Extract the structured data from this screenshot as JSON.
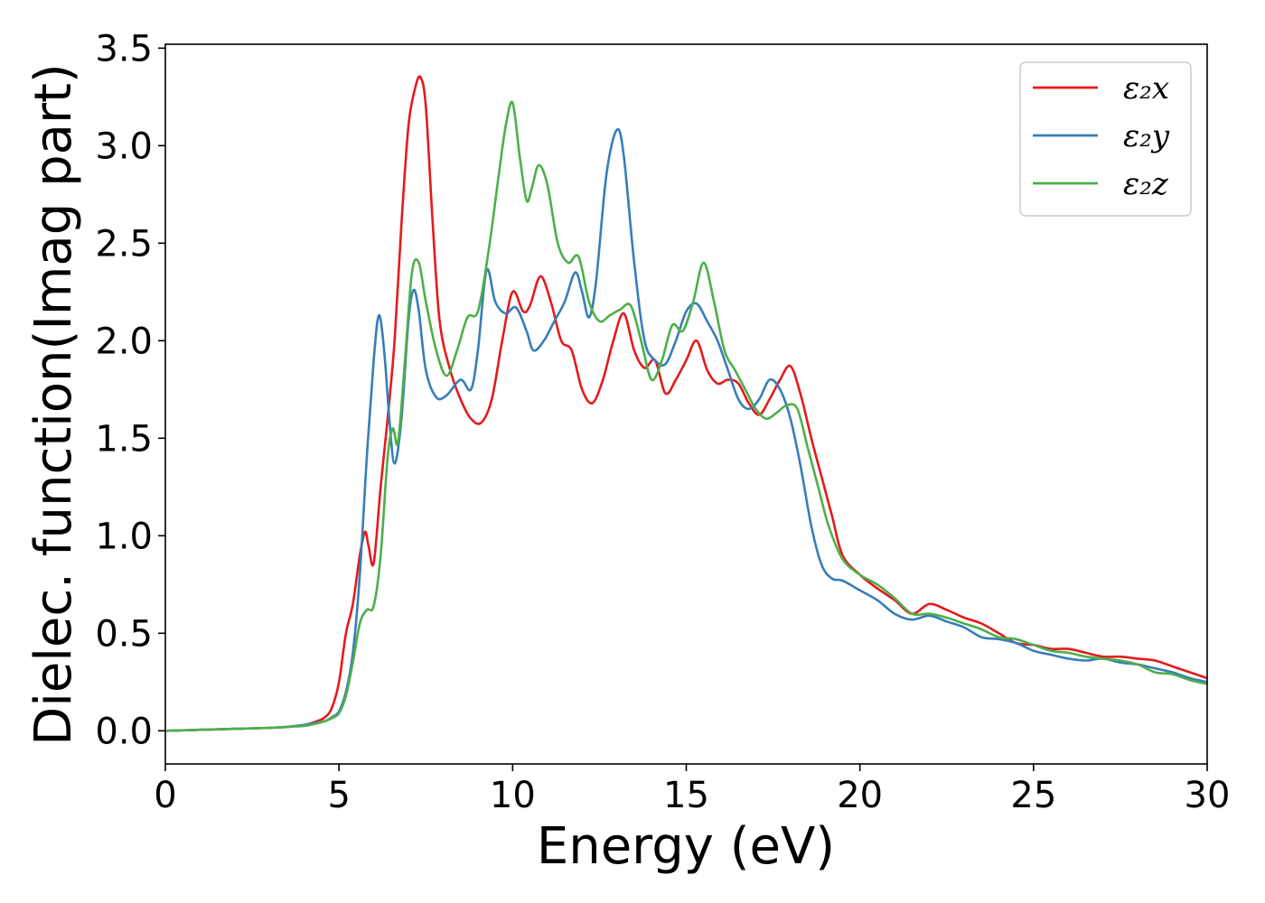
{
  "chart_data": {
    "type": "line",
    "title": "",
    "xlabel": "Energy (eV)",
    "ylabel": "Dielec. function(Imag part)",
    "xlim": [
      0,
      30
    ],
    "ylim": [
      -0.17,
      3.52
    ],
    "xticks": [
      0,
      5,
      10,
      15,
      20,
      25,
      30
    ],
    "yticks": [
      0.0,
      0.5,
      1.0,
      1.5,
      2.0,
      2.5,
      3.0,
      3.5
    ],
    "xtick_labels": [
      "0",
      "5",
      "10",
      "15",
      "20",
      "25",
      "30"
    ],
    "ytick_labels": [
      "0.0",
      "0.5",
      "1.0",
      "1.5",
      "2.0",
      "2.5",
      "3.0",
      "3.5"
    ],
    "grid": false,
    "legend_position": "top-right",
    "series": [
      {
        "name": "ε₂x",
        "color": "#e41a1c",
        "x": [
          0,
          1,
          2,
          3,
          3.5,
          4,
          4.3,
          4.6,
          4.8,
          5.0,
          5.2,
          5.4,
          5.6,
          5.75,
          5.85,
          6.0,
          6.2,
          6.4,
          6.6,
          6.8,
          7.0,
          7.2,
          7.35,
          7.5,
          7.7,
          7.9,
          8.2,
          8.5,
          8.8,
          9.1,
          9.4,
          9.7,
          10.0,
          10.3,
          10.5,
          10.8,
          11.1,
          11.4,
          11.7,
          12.0,
          12.3,
          12.6,
          12.9,
          13.2,
          13.5,
          13.8,
          14.1,
          14.4,
          14.7,
          15.0,
          15.3,
          15.6,
          15.9,
          16.2,
          16.5,
          16.8,
          17.1,
          17.4,
          17.7,
          18.0,
          18.3,
          18.6,
          18.9,
          19.2,
          19.5,
          20.0,
          20.5,
          21.0,
          21.5,
          22.0,
          22.5,
          23.0,
          23.5,
          24.0,
          24.5,
          25.0,
          25.5,
          26.0,
          26.5,
          27.0,
          27.5,
          28.0,
          28.5,
          29.0,
          29.5,
          30.0
        ],
        "y": [
          0.0,
          0.005,
          0.01,
          0.015,
          0.02,
          0.03,
          0.045,
          0.07,
          0.12,
          0.25,
          0.5,
          0.65,
          0.9,
          1.02,
          0.95,
          0.86,
          1.25,
          1.6,
          2.0,
          2.6,
          3.1,
          3.3,
          3.35,
          3.2,
          2.6,
          2.1,
          1.85,
          1.7,
          1.6,
          1.58,
          1.7,
          2.0,
          2.25,
          2.15,
          2.18,
          2.33,
          2.2,
          2.0,
          1.95,
          1.75,
          1.68,
          1.8,
          2.0,
          2.14,
          1.95,
          1.86,
          1.9,
          1.73,
          1.8,
          1.9,
          2.0,
          1.85,
          1.78,
          1.8,
          1.78,
          1.68,
          1.62,
          1.7,
          1.8,
          1.87,
          1.72,
          1.5,
          1.3,
          1.1,
          0.9,
          0.8,
          0.73,
          0.67,
          0.6,
          0.65,
          0.62,
          0.58,
          0.55,
          0.5,
          0.45,
          0.44,
          0.42,
          0.42,
          0.4,
          0.38,
          0.38,
          0.37,
          0.36,
          0.33,
          0.3,
          0.27
        ]
      },
      {
        "name": "ε₂y",
        "color": "#377eb8",
        "x": [
          0,
          1,
          2,
          3,
          3.5,
          4,
          4.3,
          4.6,
          4.8,
          5.0,
          5.2,
          5.4,
          5.6,
          5.8,
          6.0,
          6.15,
          6.3,
          6.45,
          6.6,
          6.8,
          7.0,
          7.15,
          7.3,
          7.5,
          7.8,
          8.1,
          8.5,
          8.8,
          9.0,
          9.25,
          9.5,
          9.8,
          10.1,
          10.4,
          10.6,
          10.9,
          11.2,
          11.5,
          11.8,
          12.0,
          12.2,
          12.4,
          12.7,
          13.0,
          13.2,
          13.5,
          13.8,
          14.1,
          14.4,
          14.7,
          15.0,
          15.3,
          15.6,
          15.9,
          16.2,
          16.5,
          16.8,
          17.1,
          17.4,
          17.7,
          18.0,
          18.3,
          18.6,
          18.9,
          19.2,
          19.5,
          20.0,
          20.5,
          21.0,
          21.5,
          22.0,
          22.5,
          23.0,
          23.5,
          24.0,
          24.5,
          25.0,
          25.5,
          26.0,
          26.5,
          27.0,
          27.5,
          28.0,
          28.5,
          29.0,
          29.5,
          30.0
        ],
        "y": [
          0.0,
          0.005,
          0.01,
          0.015,
          0.02,
          0.03,
          0.04,
          0.05,
          0.07,
          0.1,
          0.2,
          0.4,
          0.8,
          1.4,
          1.9,
          2.13,
          1.95,
          1.6,
          1.37,
          1.6,
          2.1,
          2.26,
          2.15,
          1.85,
          1.71,
          1.72,
          1.8,
          1.75,
          1.95,
          2.36,
          2.2,
          2.14,
          2.17,
          2.05,
          1.95,
          2.0,
          2.1,
          2.2,
          2.35,
          2.25,
          2.12,
          2.3,
          2.85,
          3.08,
          2.95,
          2.4,
          2.0,
          1.9,
          1.88,
          2.0,
          2.15,
          2.19,
          2.1,
          2.0,
          1.85,
          1.7,
          1.65,
          1.7,
          1.8,
          1.75,
          1.6,
          1.35,
          1.05,
          0.85,
          0.78,
          0.77,
          0.72,
          0.67,
          0.6,
          0.57,
          0.59,
          0.56,
          0.53,
          0.48,
          0.47,
          0.45,
          0.41,
          0.39,
          0.37,
          0.36,
          0.37,
          0.35,
          0.34,
          0.32,
          0.3,
          0.27,
          0.25
        ]
      },
      {
        "name": "ε₂z",
        "color": "#4daf4a",
        "x": [
          0,
          1,
          2,
          3,
          3.5,
          4,
          4.3,
          4.6,
          4.8,
          5.0,
          5.2,
          5.4,
          5.6,
          5.8,
          6.0,
          6.2,
          6.4,
          6.55,
          6.7,
          6.9,
          7.1,
          7.3,
          7.5,
          7.8,
          8.1,
          8.4,
          8.7,
          9.0,
          9.3,
          9.6,
          9.8,
          10.0,
          10.2,
          10.4,
          10.55,
          10.75,
          11.0,
          11.3,
          11.6,
          11.9,
          12.2,
          12.5,
          12.8,
          13.1,
          13.4,
          13.7,
          14.0,
          14.3,
          14.6,
          14.9,
          15.2,
          15.5,
          15.8,
          16.1,
          16.4,
          16.7,
          17.0,
          17.3,
          17.6,
          17.9,
          18.2,
          18.5,
          18.8,
          19.1,
          19.5,
          20.0,
          20.5,
          21.0,
          21.5,
          22.0,
          22.5,
          23.0,
          23.5,
          24.0,
          24.5,
          25.0,
          25.5,
          26.0,
          26.5,
          27.0,
          27.5,
          28.0,
          28.5,
          29.0,
          29.5,
          30.0
        ],
        "y": [
          0.0,
          0.005,
          0.01,
          0.015,
          0.02,
          0.025,
          0.035,
          0.05,
          0.065,
          0.09,
          0.18,
          0.35,
          0.55,
          0.62,
          0.64,
          0.9,
          1.4,
          1.55,
          1.48,
          1.9,
          2.35,
          2.4,
          2.2,
          1.95,
          1.82,
          1.95,
          2.12,
          2.15,
          2.45,
          2.85,
          3.1,
          3.22,
          2.95,
          2.72,
          2.78,
          2.9,
          2.8,
          2.5,
          2.4,
          2.43,
          2.2,
          2.1,
          2.13,
          2.16,
          2.18,
          2.0,
          1.8,
          1.9,
          2.08,
          2.05,
          2.2,
          2.4,
          2.2,
          1.95,
          1.85,
          1.75,
          1.65,
          1.6,
          1.63,
          1.67,
          1.65,
          1.45,
          1.25,
          1.05,
          0.88,
          0.8,
          0.75,
          0.68,
          0.6,
          0.6,
          0.58,
          0.55,
          0.52,
          0.48,
          0.47,
          0.44,
          0.41,
          0.4,
          0.38,
          0.37,
          0.36,
          0.34,
          0.3,
          0.29,
          0.26,
          0.24
        ]
      }
    ]
  }
}
